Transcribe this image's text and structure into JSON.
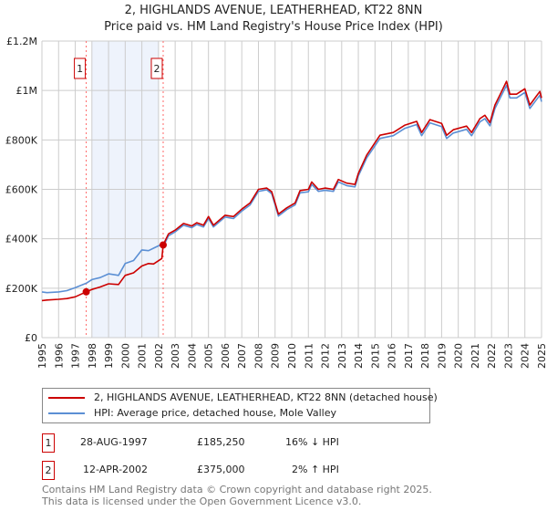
{
  "title": "2, HIGHLANDS AVENUE, LEATHERHEAD, KT22 8NN",
  "subtitle": "Price paid vs. HM Land Registry's House Price Index (HPI)",
  "colors": {
    "property": "#cc0000",
    "hpi": "#5b8fd4",
    "shade": "#eef3fc",
    "grid": "#cccccc"
  },
  "chart_data": {
    "type": "line",
    "title": "2, HIGHLANDS AVENUE, LEATHERHEAD, KT22 8NN — Price paid vs. HM Land Registry's House Price Index (HPI)",
    "xlim": [
      1995,
      2025
    ],
    "ylim": [
      0,
      1200000
    ],
    "grid": true,
    "y_ticks": [
      {
        "v": 0,
        "label": "£0"
      },
      {
        "v": 200000,
        "label": "£200K"
      },
      {
        "v": 400000,
        "label": "£400K"
      },
      {
        "v": 600000,
        "label": "£600K"
      },
      {
        "v": 800000,
        "label": "£800K"
      },
      {
        "v": 1000000,
        "label": "£1M"
      },
      {
        "v": 1200000,
        "label": "£1.2M"
      }
    ],
    "x_ticks": [
      "1995",
      "1996",
      "1997",
      "1998",
      "1999",
      "2000",
      "2001",
      "2002",
      "2003",
      "2004",
      "2005",
      "2006",
      "2007",
      "2008",
      "2009",
      "2010",
      "2011",
      "2012",
      "2013",
      "2014",
      "2015",
      "2016",
      "2017",
      "2018",
      "2019",
      "2020",
      "2021",
      "2022",
      "2023",
      "2024",
      "2025"
    ],
    "shaded_range": [
      1998,
      2002
    ],
    "series": [
      {
        "name": "2, HIGHLANDS AVENUE, LEATHERHEAD, KT22 8NN (detached house)",
        "color": "#cc0000",
        "x": [
          1995,
          1995.3,
          1996,
          1996.5,
          1997,
          1997.66,
          1998,
          1998.5,
          1999,
          1999.6,
          2000,
          2000.5,
          2001,
          2001.4,
          2001.7,
          2002.2,
          2002.28,
          2002.6,
          2003,
          2003.5,
          2004,
          2004.3,
          2004.7,
          2005,
          2005.3,
          2006,
          2006.5,
          2007,
          2007.5,
          2008,
          2008.5,
          2008.8,
          2009.2,
          2009.7,
          2010.2,
          2010.5,
          2011,
          2011.2,
          2011.6,
          2012,
          2012.5,
          2012.8,
          2013.3,
          2013.8,
          2014,
          2014.5,
          2015.3,
          2016.1,
          2016.8,
          2017.5,
          2017.8,
          2018.3,
          2019,
          2019.3,
          2019.7,
          2020.5,
          2020.8,
          2021.3,
          2021.6,
          2021.9,
          2022.2,
          2022.6,
          2022.9,
          2023.1,
          2023.5,
          2024,
          2024.3,
          2024.7,
          2024.9,
          2025
        ],
        "y": [
          150000,
          152000,
          155000,
          158000,
          165000,
          185250,
          195000,
          205000,
          218000,
          215000,
          252000,
          262000,
          290000,
          300000,
          298000,
          320000,
          375000,
          420000,
          435000,
          462000,
          452000,
          465000,
          455000,
          490000,
          455000,
          495000,
          490000,
          520000,
          545000,
          600000,
          605000,
          590000,
          500000,
          525000,
          545000,
          595000,
          600000,
          630000,
          600000,
          605000,
          600000,
          640000,
          625000,
          620000,
          665000,
          738000,
          819000,
          830000,
          860000,
          875000,
          830000,
          882000,
          867000,
          819000,
          841000,
          856000,
          830000,
          886000,
          900000,
          870000,
          941000,
          996000,
          1037000,
          985000,
          985000,
          1007000,
          941000,
          978000,
          996000,
          970000
        ]
      },
      {
        "name": "HPI: Average price, detached house, Mole Valley",
        "color": "#5b8fd4",
        "x": [
          1995,
          1995.3,
          1996,
          1996.5,
          1997,
          1997.66,
          1998,
          1998.5,
          1999,
          1999.6,
          2000,
          2000.5,
          2001,
          2001.4,
          2001.7,
          2002.2,
          2002.28,
          2002.6,
          2003,
          2003.5,
          2004,
          2004.3,
          2004.7,
          2005,
          2005.3,
          2006,
          2006.5,
          2007,
          2007.5,
          2008,
          2008.5,
          2008.8,
          2009.2,
          2009.7,
          2010.2,
          2010.5,
          2011,
          2011.2,
          2011.6,
          2012,
          2012.5,
          2012.8,
          2013.3,
          2013.8,
          2014,
          2014.5,
          2015.3,
          2016.1,
          2016.8,
          2017.5,
          2017.8,
          2018.3,
          2019,
          2019.3,
          2019.7,
          2020.5,
          2020.8,
          2021.3,
          2021.6,
          2021.9,
          2022.2,
          2022.6,
          2022.9,
          2023.1,
          2023.5,
          2024,
          2024.3,
          2024.7,
          2024.9,
          2025
        ],
        "y": [
          185000,
          182000,
          185000,
          190000,
          202000,
          220000,
          235000,
          243000,
          258000,
          252000,
          300000,
          312000,
          355000,
          352000,
          362000,
          378000,
          368000,
          412000,
          428000,
          455000,
          445000,
          458000,
          448000,
          482000,
          448000,
          488000,
          482000,
          512000,
          537000,
          592000,
          598000,
          582000,
          492000,
          518000,
          537000,
          586000,
          590000,
          620000,
          592000,
          596000,
          592000,
          630000,
          615000,
          610000,
          655000,
          727000,
          806000,
          817000,
          847000,
          862000,
          817000,
          869000,
          854000,
          806000,
          828000,
          843000,
          817000,
          873000,
          886000,
          857000,
          927000,
          981000,
          1021000,
          970000,
          970000,
          992000,
          927000,
          963000,
          981000,
          955000
        ]
      }
    ],
    "annotations": [
      {
        "label": "1",
        "x": 1997.66,
        "y": 185250
      },
      {
        "label": "2",
        "x": 2002.28,
        "y": 375000
      }
    ]
  },
  "legend": {
    "property_label": "2, HIGHLANDS AVENUE, LEATHERHEAD, KT22 8NN (detached house)",
    "hpi_label": "HPI: Average price, detached house, Mole Valley"
  },
  "sales": [
    {
      "num": "1",
      "date": "28-AUG-1997",
      "price": "£185,250",
      "hpi": "16% ↓ HPI"
    },
    {
      "num": "2",
      "date": "12-APR-2002",
      "price": "£375,000",
      "hpi": "2% ↑ HPI"
    }
  ],
  "footer": {
    "line1": "Contains HM Land Registry data © Crown copyright and database right 2025.",
    "line2": "This data is licensed under the Open Government Licence v3.0."
  }
}
